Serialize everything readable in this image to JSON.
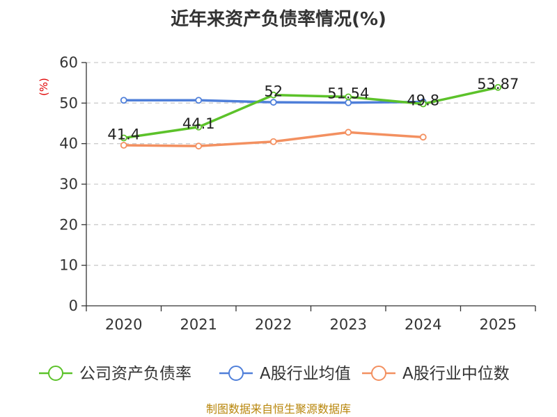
{
  "chart_data": {
    "type": "line",
    "title": "近年来资产负债率情况(%)",
    "ylabel": "(%)",
    "categories": [
      "2020",
      "2021",
      "2022",
      "2023",
      "2024",
      "2025"
    ],
    "ylim": [
      0,
      60
    ],
    "yticks": [
      0,
      10,
      20,
      30,
      40,
      50,
      60
    ],
    "grid": true,
    "legend_position": "bottom",
    "series": [
      {
        "name": "公司资产负债率",
        "color": "#5cc22a",
        "values": [
          41.4,
          44.1,
          52,
          51.54,
          49.8,
          53.87
        ],
        "labels": [
          "41.4",
          "44.1",
          "52",
          "51.54",
          "49.8",
          "53.87"
        ]
      },
      {
        "name": "A股行业均值",
        "color": "#4f7fd9",
        "values": [
          50.7,
          50.7,
          50.2,
          50.1,
          50.3,
          null
        ],
        "labels": null
      },
      {
        "name": "A股行业中位数",
        "color": "#f39060",
        "values": [
          39.6,
          39.4,
          40.5,
          42.8,
          41.6,
          null
        ],
        "labels": null
      }
    ]
  },
  "source": "制图数据来自恒生聚源数据库"
}
